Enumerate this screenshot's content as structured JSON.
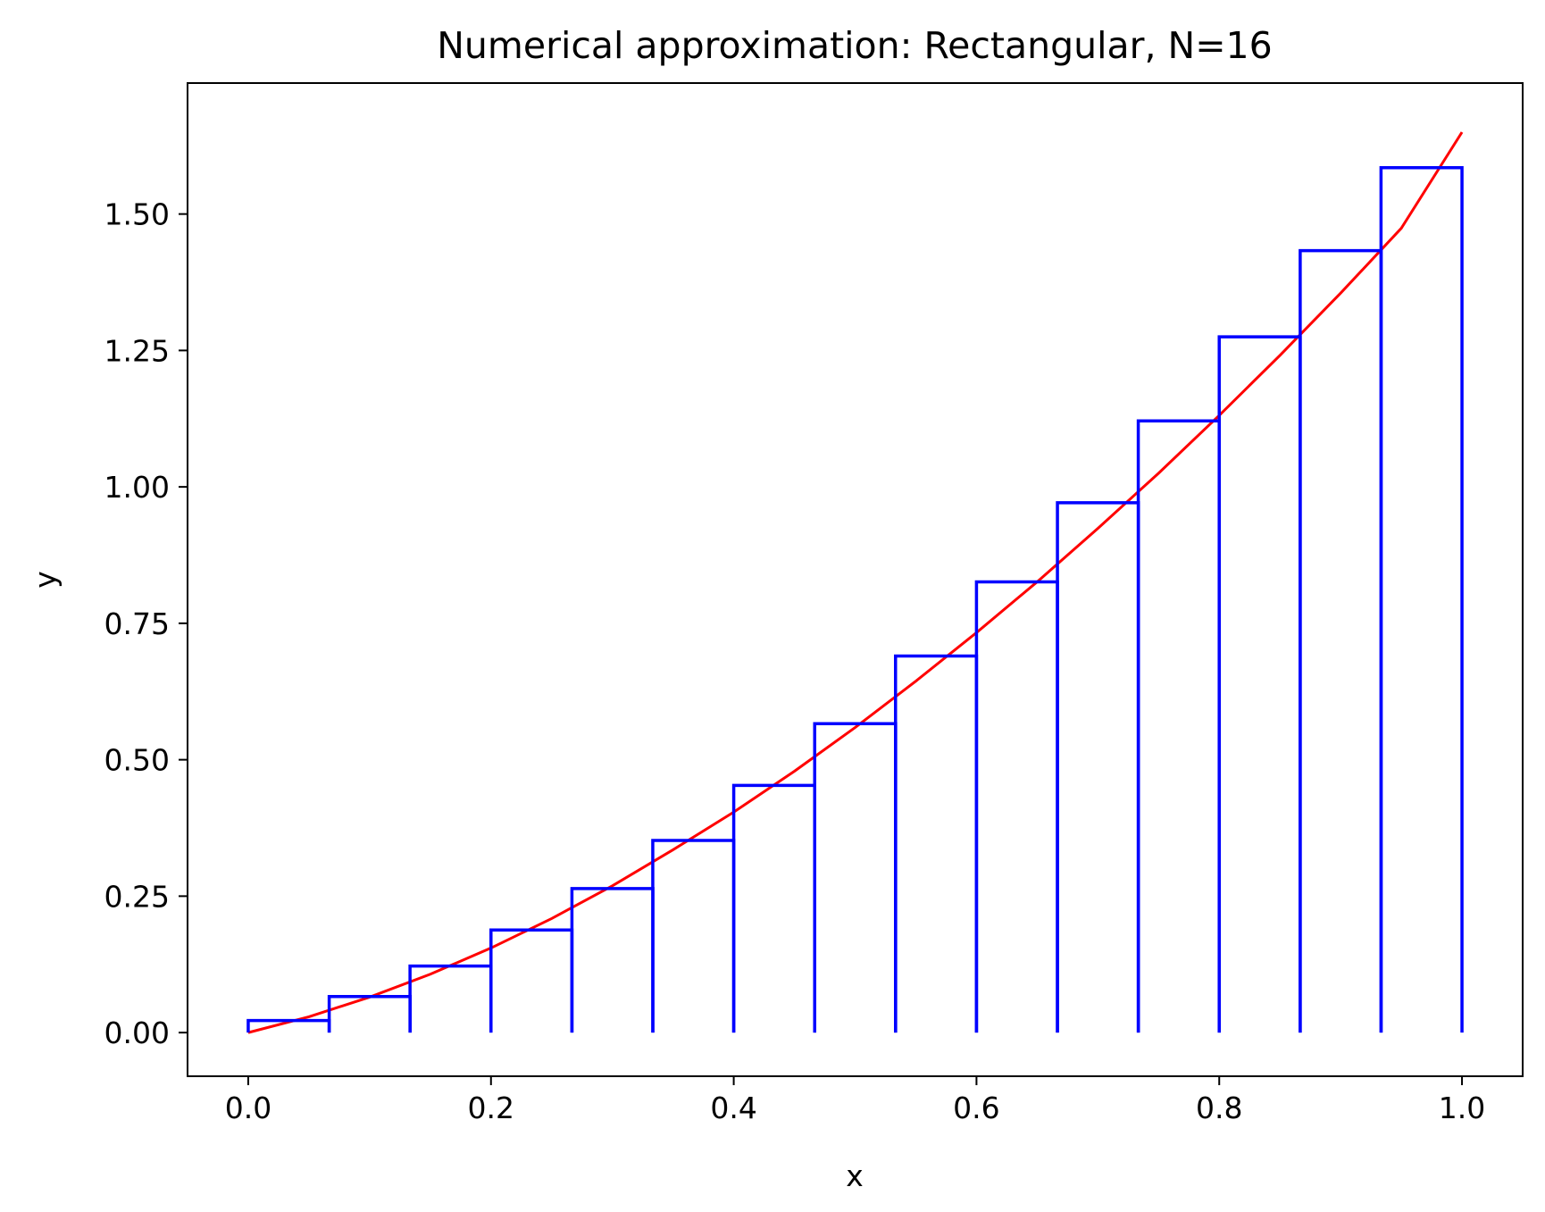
{
  "chart_data": {
    "type": "line",
    "title": "Numerical approximation: Rectangular, N=16",
    "xlabel": "x",
    "ylabel": "y",
    "xlim": [
      -0.05,
      1.05
    ],
    "ylim": [
      -0.08,
      1.74
    ],
    "xticks": [
      0.0,
      0.2,
      0.4,
      0.6,
      0.8,
      1.0
    ],
    "xtick_labels": [
      "0.0",
      "0.2",
      "0.4",
      "0.6",
      "0.8",
      "1.0"
    ],
    "yticks": [
      0.0,
      0.25,
      0.5,
      0.75,
      1.0,
      1.25,
      1.5
    ],
    "ytick_labels": [
      "0.00",
      "0.25",
      "0.50",
      "0.75",
      "1.00",
      "1.25",
      "1.50"
    ],
    "grid": false,
    "colors": {
      "curve": "#ff0000",
      "rectangles": "#0000ff"
    },
    "curve": {
      "x": [
        0.0,
        0.05,
        0.1,
        0.15,
        0.2,
        0.25,
        0.3,
        0.35,
        0.4,
        0.45,
        0.5,
        0.55,
        0.6,
        0.65,
        0.7,
        0.75,
        0.8,
        0.85,
        0.9,
        0.95,
        1.0
      ],
      "y": [
        0.0,
        0.029,
        0.065,
        0.107,
        0.155,
        0.209,
        0.269,
        0.335,
        0.404,
        0.479,
        0.559,
        0.644,
        0.733,
        0.826,
        0.924,
        1.025,
        1.131,
        1.241,
        1.355,
        1.474,
        1.65
      ]
    },
    "rectangles": {
      "left_edges": [
        0.0,
        0.0667,
        0.1333,
        0.2,
        0.2667,
        0.3333,
        0.4,
        0.4667,
        0.5333,
        0.6,
        0.6667,
        0.7333,
        0.8,
        0.8667,
        0.9333
      ],
      "width": 0.0667,
      "heights": [
        0.022,
        0.066,
        0.122,
        0.188,
        0.264,
        0.352,
        0.453,
        0.566,
        0.69,
        0.826,
        0.971,
        1.121,
        1.275,
        1.433,
        1.585
      ]
    }
  }
}
